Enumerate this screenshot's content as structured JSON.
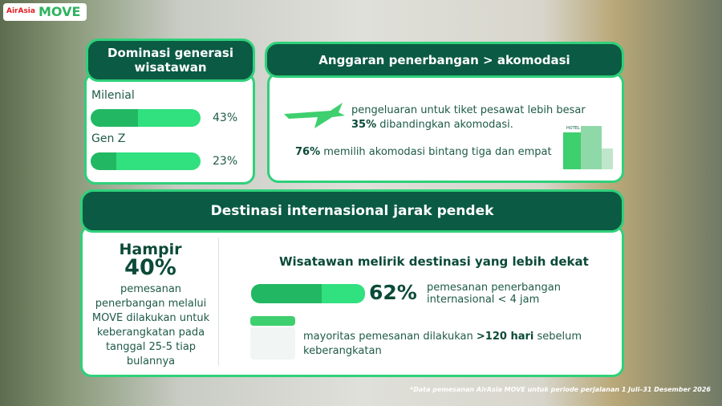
{
  "logo": {
    "brand": "AirAsia",
    "product": "MOVE"
  },
  "generation": {
    "title": "Dominasi generasi wisatawan",
    "items": [
      {
        "name": "Milenial",
        "value": 43,
        "label": "43%"
      },
      {
        "name": "Gen Z",
        "value": 23,
        "label": "23%"
      }
    ]
  },
  "budget": {
    "title": "Anggaran penerbangan > akomodasi",
    "flight_text_1": "pengeluaran untuk tiket pesawat lebih besar",
    "flight_highlight": "35%",
    "flight_text_2": "dibandingkan akomodasi.",
    "hotel_highlight": "76%",
    "hotel_text": "memilih akomodasi bintang tiga dan empat",
    "hotel_sign": "HOTEL"
  },
  "destination": {
    "title": "Destinasi internasional jarak pendek",
    "left": {
      "lead": "Hampir",
      "highlight": "40%",
      "text": "pemesanan penerbangan melalui MOVE dilakukan untuk keberangkatan pada tanggal 25-5 tiap bulannya"
    },
    "right": {
      "subtitle": "Wisatawan melirik destinasi yang lebih dekat",
      "bar": {
        "value": 62,
        "label": "62%",
        "text": "pemesanan penerbangan internasional < 4 jam"
      },
      "note_1": "mayoritas pemesanan dilakukan",
      "note_highlight": ">120 hari",
      "note_2": "sebelum keberangkatan"
    }
  },
  "footnote": "*Data pemesanan AirAsia MOVE untuk periode perjalanan 1 Juli–31 Desember 2026"
}
